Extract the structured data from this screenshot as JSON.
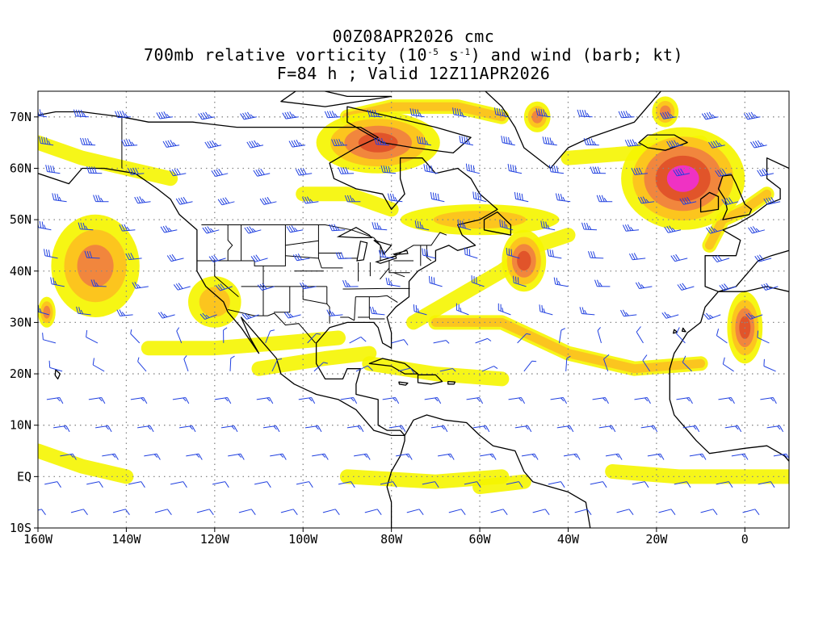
{
  "title": {
    "line1": "00Z08APR2026 cmc",
    "line2_pre": "700mb relative vorticity (10",
    "line2_exp1": "-5",
    "line2_mid": " s",
    "line2_exp2": "-1",
    "line2_post": ") and wind (barb; kt)",
    "line3": "F=84 h ; Valid 12Z11APR2026"
  },
  "map": {
    "projection": "cylindrical lat-lon",
    "lon_range": [
      -160,
      10
    ],
    "lat_range": [
      -10,
      75
    ],
    "grid": "dotted",
    "lat_ticks": [
      {
        "lat": 70,
        "label": "70N"
      },
      {
        "lat": 60,
        "label": "60N"
      },
      {
        "lat": 50,
        "label": "50N"
      },
      {
        "lat": 40,
        "label": "40N"
      },
      {
        "lat": 30,
        "label": "30N"
      },
      {
        "lat": 20,
        "label": "20N"
      },
      {
        "lat": 10,
        "label": "10N"
      },
      {
        "lat": 0,
        "label": "EQ"
      },
      {
        "lat": -10,
        "label": "10S"
      }
    ],
    "lon_ticks": [
      {
        "lon": -160,
        "label": "160W"
      },
      {
        "lon": -140,
        "label": "140W"
      },
      {
        "lon": -120,
        "label": "120W"
      },
      {
        "lon": -100,
        "label": "100W"
      },
      {
        "lon": -80,
        "label": "80W"
      },
      {
        "lon": -60,
        "label": "60W"
      },
      {
        "lon": -40,
        "label": "40W"
      },
      {
        "lon": -20,
        "label": "20W"
      },
      {
        "lon": 0,
        "label": "0"
      }
    ],
    "colors": {
      "vort_low": "#f5f500",
      "vort_mid": "#fcc020",
      "vort_high": "#f08040",
      "vort_higher": "#e05028",
      "vort_max": "#f030d0",
      "barb": "#2040e0",
      "coast": "#000000",
      "grid": "#888888"
    },
    "vorticity_features": [
      {
        "lon": -147,
        "lat": 41,
        "rx": 10,
        "ry": 10,
        "level": 3,
        "feature": "NE Pacific cyclone"
      },
      {
        "lon": -120,
        "lat": 34,
        "rx": 6,
        "ry": 5,
        "level": 2,
        "feature": "SW US"
      },
      {
        "lon": -83,
        "lat": 65,
        "rx": 14,
        "ry": 6,
        "level": 4,
        "feature": "Hudson Bay low"
      },
      {
        "lon": -60,
        "lat": 50,
        "rx": 18,
        "ry": 3,
        "level": 2,
        "feature": "NE US frontal band"
      },
      {
        "lon": -50,
        "lat": 42,
        "rx": 5,
        "ry": 6,
        "level": 4,
        "feature": "Western Atlantic"
      },
      {
        "lon": -14,
        "lat": 58,
        "rx": 14,
        "ry": 10,
        "level": 5,
        "feature": "North Atlantic cyclone"
      },
      {
        "lon": 0,
        "lat": 29,
        "rx": 4,
        "ry": 7,
        "level": 4,
        "feature": "NW Africa"
      },
      {
        "lon": -47,
        "lat": 70,
        "rx": 3,
        "ry": 3,
        "level": 3,
        "feature": "Greenland"
      },
      {
        "lon": -18,
        "lat": 71,
        "rx": 3,
        "ry": 3,
        "level": 3,
        "feature": "East Greenland"
      },
      {
        "lon": -158,
        "lat": 32,
        "rx": 2,
        "ry": 3,
        "level": 3,
        "feature": "Central Pacific"
      }
    ],
    "vorticity_bands": [
      {
        "points": [
          [
            -160,
            65
          ],
          [
            -150,
            62
          ],
          [
            -140,
            60
          ],
          [
            -130,
            58
          ]
        ],
        "level": 1
      },
      {
        "points": [
          [
            -135,
            25
          ],
          [
            -120,
            25
          ],
          [
            -105,
            26
          ],
          [
            -92,
            27
          ]
        ],
        "level": 1
      },
      {
        "points": [
          [
            -110,
            21
          ],
          [
            -95,
            23
          ],
          [
            -85,
            24
          ]
        ],
        "level": 1
      },
      {
        "points": [
          [
            -75,
            30
          ],
          [
            -65,
            35
          ],
          [
            -55,
            40
          ],
          [
            -47,
            45
          ],
          [
            -40,
            47
          ]
        ],
        "level": 1
      },
      {
        "points": [
          [
            -70,
            30
          ],
          [
            -55,
            30
          ],
          [
            -40,
            24
          ],
          [
            -25,
            21
          ],
          [
            -10,
            22
          ]
        ],
        "level": 2
      },
      {
        "points": [
          [
            -85,
            22
          ],
          [
            -70,
            20
          ],
          [
            -55,
            19
          ]
        ],
        "level": 1
      },
      {
        "points": [
          [
            -40,
            62
          ],
          [
            -25,
            63
          ],
          [
            -10,
            65
          ]
        ],
        "level": 1
      },
      {
        "points": [
          [
            -90,
            70
          ],
          [
            -80,
            72
          ],
          [
            -65,
            72
          ],
          [
            -55,
            70
          ]
        ],
        "level": 2
      },
      {
        "points": [
          [
            -100,
            55
          ],
          [
            -90,
            55
          ],
          [
            -80,
            52
          ]
        ],
        "level": 1
      },
      {
        "points": [
          [
            -90,
            0
          ],
          [
            -70,
            -1
          ],
          [
            -55,
            0
          ]
        ],
        "level": 1
      },
      {
        "points": [
          [
            -30,
            1
          ],
          [
            -15,
            0
          ],
          [
            0,
            0
          ],
          [
            10,
            0
          ]
        ],
        "level": 1
      },
      {
        "points": [
          [
            -160,
            5
          ],
          [
            -150,
            2
          ],
          [
            -140,
            0
          ]
        ],
        "level": 1
      },
      {
        "points": [
          [
            -60,
            -2
          ],
          [
            -50,
            -1
          ]
        ],
        "level": 1
      },
      {
        "points": [
          [
            -8,
            45
          ],
          [
            -5,
            50
          ],
          [
            0,
            52
          ],
          [
            5,
            55
          ]
        ],
        "level": 2
      }
    ]
  }
}
